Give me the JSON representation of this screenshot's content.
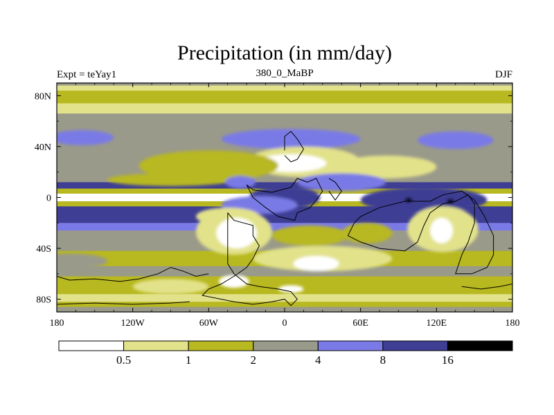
{
  "chart_data": {
    "type": "filled-contour-map",
    "title": "Precipitation (in mm/day)",
    "left_string": "Expt = teYay1",
    "center_string": "380_0_MaBP",
    "right_string": "DJF",
    "x_ticks": [
      {
        "value": -180,
        "label": "180"
      },
      {
        "value": -120,
        "label": "120W"
      },
      {
        "value": -60,
        "label": "60W"
      },
      {
        "value": 0,
        "label": "0"
      },
      {
        "value": 60,
        "label": "60E"
      },
      {
        "value": 120,
        "label": "120E"
      },
      {
        "value": 180,
        "label": "180"
      }
    ],
    "y_ticks": [
      {
        "value": 80,
        "label": "80N"
      },
      {
        "value": 40,
        "label": "40N"
      },
      {
        "value": 0,
        "label": "0"
      },
      {
        "value": -40,
        "label": "40S"
      },
      {
        "value": -80,
        "label": "80S"
      }
    ],
    "xlim": [
      -180,
      180
    ],
    "ylim": [
      -90,
      90
    ],
    "colorbar": {
      "levels": [
        0.5,
        1,
        2,
        4,
        8,
        16
      ],
      "labels": [
        "0.5",
        "1",
        "2",
        "4",
        "8",
        "16"
      ],
      "colors": [
        "#ffffff",
        "#e2e28a",
        "#b8b820",
        "#9a9a8a",
        "#7a7ae6",
        "#3e3e94",
        "#000000"
      ]
    },
    "zonal_bands": [
      {
        "lat": [
          88,
          90
        ],
        "bin": 3
      },
      {
        "lat": [
          84,
          88
        ],
        "bin": 1
      },
      {
        "lat": [
          74,
          84
        ],
        "bin": 2
      },
      {
        "lat": [
          66,
          74
        ],
        "bin": 1
      },
      {
        "lat": [
          52,
          66
        ],
        "bin": 3
      },
      {
        "lat": [
          38,
          52
        ],
        "bin": 3
      },
      {
        "lat": [
          22,
          38
        ],
        "bin": 3
      },
      {
        "lat": [
          12,
          22
        ],
        "bin": 3
      },
      {
        "lat": [
          7,
          12
        ],
        "bin": 5
      },
      {
        "lat": [
          3,
          7
        ],
        "bin": 2
      },
      {
        "lat": [
          -3,
          3
        ],
        "bin": 0
      },
      {
        "lat": [
          -7,
          -3
        ],
        "bin": 2
      },
      {
        "lat": [
          -20,
          -7
        ],
        "bin": 5
      },
      {
        "lat": [
          -26,
          -20
        ],
        "bin": 4
      },
      {
        "lat": [
          -42,
          -26
        ],
        "bin": 3
      },
      {
        "lat": [
          -54,
          -42
        ],
        "bin": 2
      },
      {
        "lat": [
          -62,
          -54
        ],
        "bin": 3
      },
      {
        "lat": [
          -70,
          -62
        ],
        "bin": 2
      },
      {
        "lat": [
          -76,
          -70
        ],
        "bin": 2
      },
      {
        "lat": [
          -82,
          -76
        ],
        "bin": 1
      },
      {
        "lat": [
          -86,
          -82
        ],
        "bin": 2
      },
      {
        "lat": [
          -90,
          -86
        ],
        "bin": 3
      }
    ],
    "regions": [
      {
        "bin": 4,
        "lon": 5,
        "lat": 46,
        "rx": 55,
        "ry": 8
      },
      {
        "bin": 4,
        "lon": -160,
        "lat": 47,
        "rx": 25,
        "ry": 6
      },
      {
        "bin": 4,
        "lon": 135,
        "lat": 45,
        "rx": 30,
        "ry": 7
      },
      {
        "bin": 1,
        "lon": 15,
        "lat": 28,
        "rx": 45,
        "ry": 12
      },
      {
        "bin": 0,
        "lon": 5,
        "lat": 27,
        "rx": 28,
        "ry": 7
      },
      {
        "bin": 2,
        "lon": -60,
        "lat": 25,
        "rx": 55,
        "ry": 12
      },
      {
        "bin": 1,
        "lon": 80,
        "lat": 24,
        "rx": 40,
        "ry": 9
      },
      {
        "bin": 2,
        "lon": -90,
        "lat": 14,
        "rx": 50,
        "ry": 5
      },
      {
        "bin": 4,
        "lon": 45,
        "lat": 12,
        "rx": 35,
        "ry": 7
      },
      {
        "bin": 4,
        "lon": -35,
        "lat": 12,
        "rx": 12,
        "ry": 5
      },
      {
        "bin": 5,
        "lon": 0,
        "lat": 0,
        "rx": 28,
        "ry": 9
      },
      {
        "bin": 5,
        "lon": 110,
        "lat": -2,
        "rx": 50,
        "ry": 10
      },
      {
        "bin": 6,
        "lon": 98,
        "lat": -2,
        "rx": 3,
        "ry": 2
      },
      {
        "bin": 6,
        "lon": 131,
        "lat": -3,
        "rx": 3,
        "ry": 2
      },
      {
        "bin": 4,
        "lon": -20,
        "lat": -6,
        "rx": 30,
        "ry": 7
      },
      {
        "bin": 1,
        "lon": -45,
        "lat": -15,
        "rx": 25,
        "ry": 7
      },
      {
        "bin": 1,
        "lon": -40,
        "lat": -27,
        "rx": 30,
        "ry": 18
      },
      {
        "bin": 0,
        "lon": -38,
        "lat": -28,
        "rx": 16,
        "ry": 12
      },
      {
        "bin": 1,
        "lon": 125,
        "lat": -25,
        "rx": 28,
        "ry": 18
      },
      {
        "bin": 0,
        "lon": 124,
        "lat": -26,
        "rx": 9,
        "ry": 10
      },
      {
        "bin": 1,
        "lon": 30,
        "lat": -48,
        "rx": 55,
        "ry": 10
      },
      {
        "bin": 2,
        "lon": 20,
        "lat": -30,
        "rx": 30,
        "ry": 8
      },
      {
        "bin": 2,
        "lon": 65,
        "lat": -28,
        "rx": 20,
        "ry": 8
      },
      {
        "bin": 0,
        "lon": 25,
        "lat": -52,
        "rx": 18,
        "ry": 6
      },
      {
        "bin": 0,
        "lon": -40,
        "lat": -66,
        "rx": 12,
        "ry": 5
      },
      {
        "bin": 0,
        "lon": 5,
        "lat": -72,
        "rx": 10,
        "ry": 3
      },
      {
        "bin": 3,
        "lon": -170,
        "lat": -50,
        "rx": 30,
        "ry": 6
      },
      {
        "bin": 1,
        "lon": -90,
        "lat": -70,
        "rx": 30,
        "ry": 6
      }
    ],
    "coastlines": [
      [
        [
          -45,
          -12
        ],
        [
          -40,
          -18
        ],
        [
          -25,
          -22
        ],
        [
          -25,
          -30
        ],
        [
          -20,
          -38
        ],
        [
          -25,
          -48
        ],
        [
          -30,
          -55
        ],
        [
          -40,
          -62
        ],
        [
          -50,
          -68
        ],
        [
          -60,
          -72
        ],
        [
          -65,
          -77
        ],
        [
          -50,
          -80
        ],
        [
          -40,
          -82
        ],
        [
          -25,
          -84
        ],
        [
          -10,
          -82
        ],
        [
          0,
          -80
        ],
        [
          5,
          -85
        ],
        [
          10,
          -80
        ],
        [
          5,
          -74
        ],
        [
          -5,
          -72
        ],
        [
          -20,
          -70
        ],
        [
          -30,
          -68
        ],
        [
          -40,
          -60
        ],
        [
          -45,
          -52
        ],
        [
          -45,
          -38
        ],
        [
          -45,
          -25
        ],
        [
          -45,
          -12
        ]
      ],
      [
        [
          -30,
          10
        ],
        [
          -25,
          6
        ],
        [
          -10,
          4
        ],
        [
          5,
          8
        ],
        [
          10,
          15
        ],
        [
          18,
          12
        ],
        [
          25,
          15
        ],
        [
          30,
          5
        ],
        [
          25,
          -2
        ],
        [
          20,
          -8
        ],
        [
          10,
          -12
        ],
        [
          8,
          -18
        ],
        [
          -5,
          -15
        ],
        [
          -15,
          -8
        ],
        [
          -25,
          0
        ],
        [
          -30,
          10
        ]
      ],
      [
        [
          0,
          37
        ],
        [
          0,
          48
        ],
        [
          5,
          52
        ],
        [
          10,
          46
        ],
        [
          15,
          38
        ],
        [
          10,
          30
        ],
        [
          5,
          28
        ],
        [
          0,
          33
        ]
      ],
      [
        [
          35,
          15
        ],
        [
          40,
          12
        ],
        [
          45,
          5
        ],
        [
          40,
          -2
        ],
        [
          35,
          5
        ]
      ],
      [
        [
          55,
          -20
        ],
        [
          50,
          -30
        ],
        [
          60,
          -35
        ],
        [
          75,
          -40
        ],
        [
          95,
          -42
        ],
        [
          105,
          -35
        ],
        [
          110,
          -22
        ],
        [
          115,
          -12
        ],
        [
          125,
          -5
        ],
        [
          135,
          -3
        ],
        [
          145,
          2
        ],
        [
          150,
          -5
        ],
        [
          150,
          -20
        ],
        [
          145,
          -35
        ],
        [
          140,
          -45
        ],
        [
          135,
          -60
        ],
        [
          148,
          -60
        ],
        [
          160,
          -55
        ],
        [
          165,
          -45
        ],
        [
          165,
          -30
        ],
        [
          158,
          -15
        ],
        [
          150,
          -2
        ],
        [
          140,
          5
        ],
        [
          125,
          2
        ],
        [
          115,
          -3
        ],
        [
          95,
          -3
        ],
        [
          75,
          -8
        ],
        [
          60,
          -15
        ],
        [
          55,
          -20
        ]
      ],
      [
        [
          -180,
          -62
        ],
        [
          -170,
          -65
        ],
        [
          -150,
          -64
        ],
        [
          -130,
          -66
        ],
        [
          -115,
          -64
        ],
        [
          -100,
          -60
        ],
        [
          -90,
          -55
        ],
        [
          -80,
          -58
        ],
        [
          -70,
          -62
        ],
        [
          -60,
          -60
        ]
      ],
      [
        [
          -180,
          -84
        ],
        [
          -150,
          -83
        ],
        [
          -120,
          -84
        ],
        [
          -90,
          -83
        ],
        [
          -75,
          -82
        ]
      ],
      [
        [
          140,
          -70
        ],
        [
          155,
          -72
        ],
        [
          170,
          -70
        ],
        [
          180,
          -68
        ]
      ]
    ]
  }
}
